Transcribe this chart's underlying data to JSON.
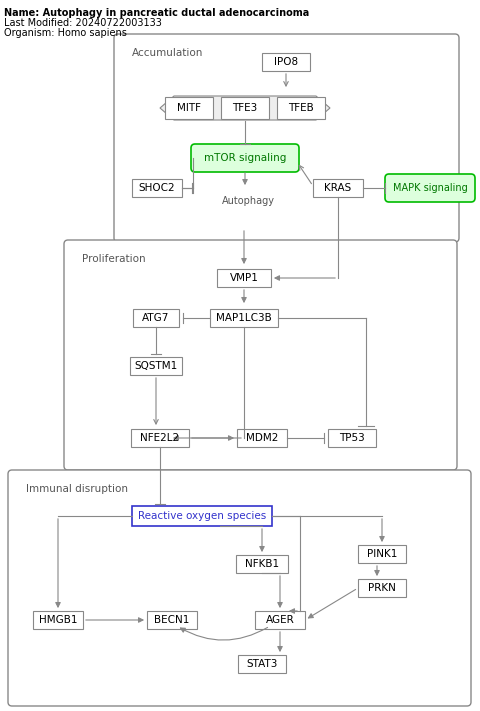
{
  "title": "Name: Autophagy in pancreatic ductal adenocarcinoma",
  "last_modified": "Last Modified: 20240722003133",
  "organism": "Organism: Homo sapiens",
  "bg_color": "#ffffff",
  "green_fill": "#ddffdd",
  "green_edge": "#00bb00",
  "green_text": "#007700",
  "box_edge": "#888888",
  "blue_edge": "#3333cc",
  "blue_text": "#3333cc",
  "section1_label": "Accumulation",
  "section2_label": "Proliferation",
  "section3_label": "Immunal disruption"
}
